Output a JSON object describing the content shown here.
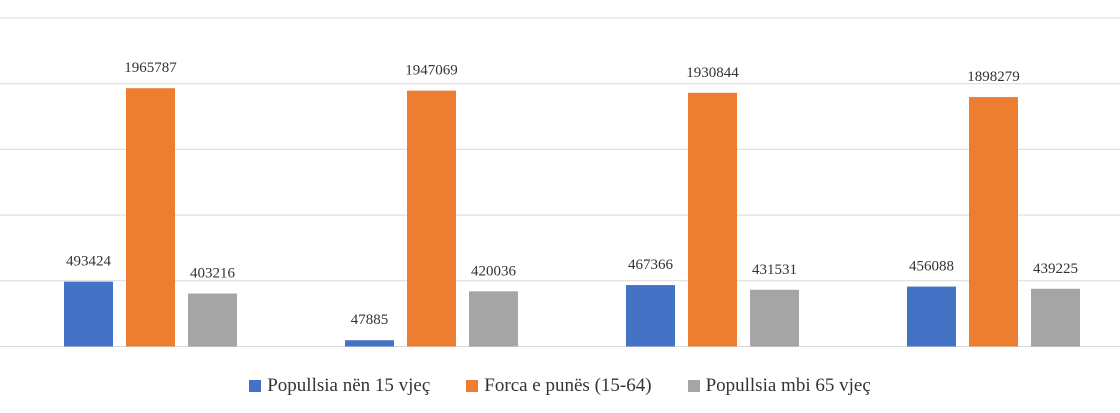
{
  "chart_data": {
    "type": "bar",
    "categories": [
      "",
      "",
      "",
      ""
    ],
    "series": [
      {
        "name": "Popullsia nën 15 vjeç",
        "color": "#4472C4",
        "values": [
          493424,
          47885,
          467366,
          456088
        ]
      },
      {
        "name": "Forca e punës (15-64)",
        "color": "#ED7D31",
        "values": [
          1965787,
          1947069,
          1930844,
          1898279
        ]
      },
      {
        "name": "Popullsia mbi 65 vjeç",
        "color": "#A5A5A5",
        "values": [
          403216,
          420036,
          431531,
          439225
        ]
      }
    ],
    "ylim": [
      0,
      2500000
    ],
    "ytick_step": 500000,
    "grid": true,
    "legend_position": "bottom",
    "title": "",
    "xlabel": "",
    "ylabel": ""
  }
}
